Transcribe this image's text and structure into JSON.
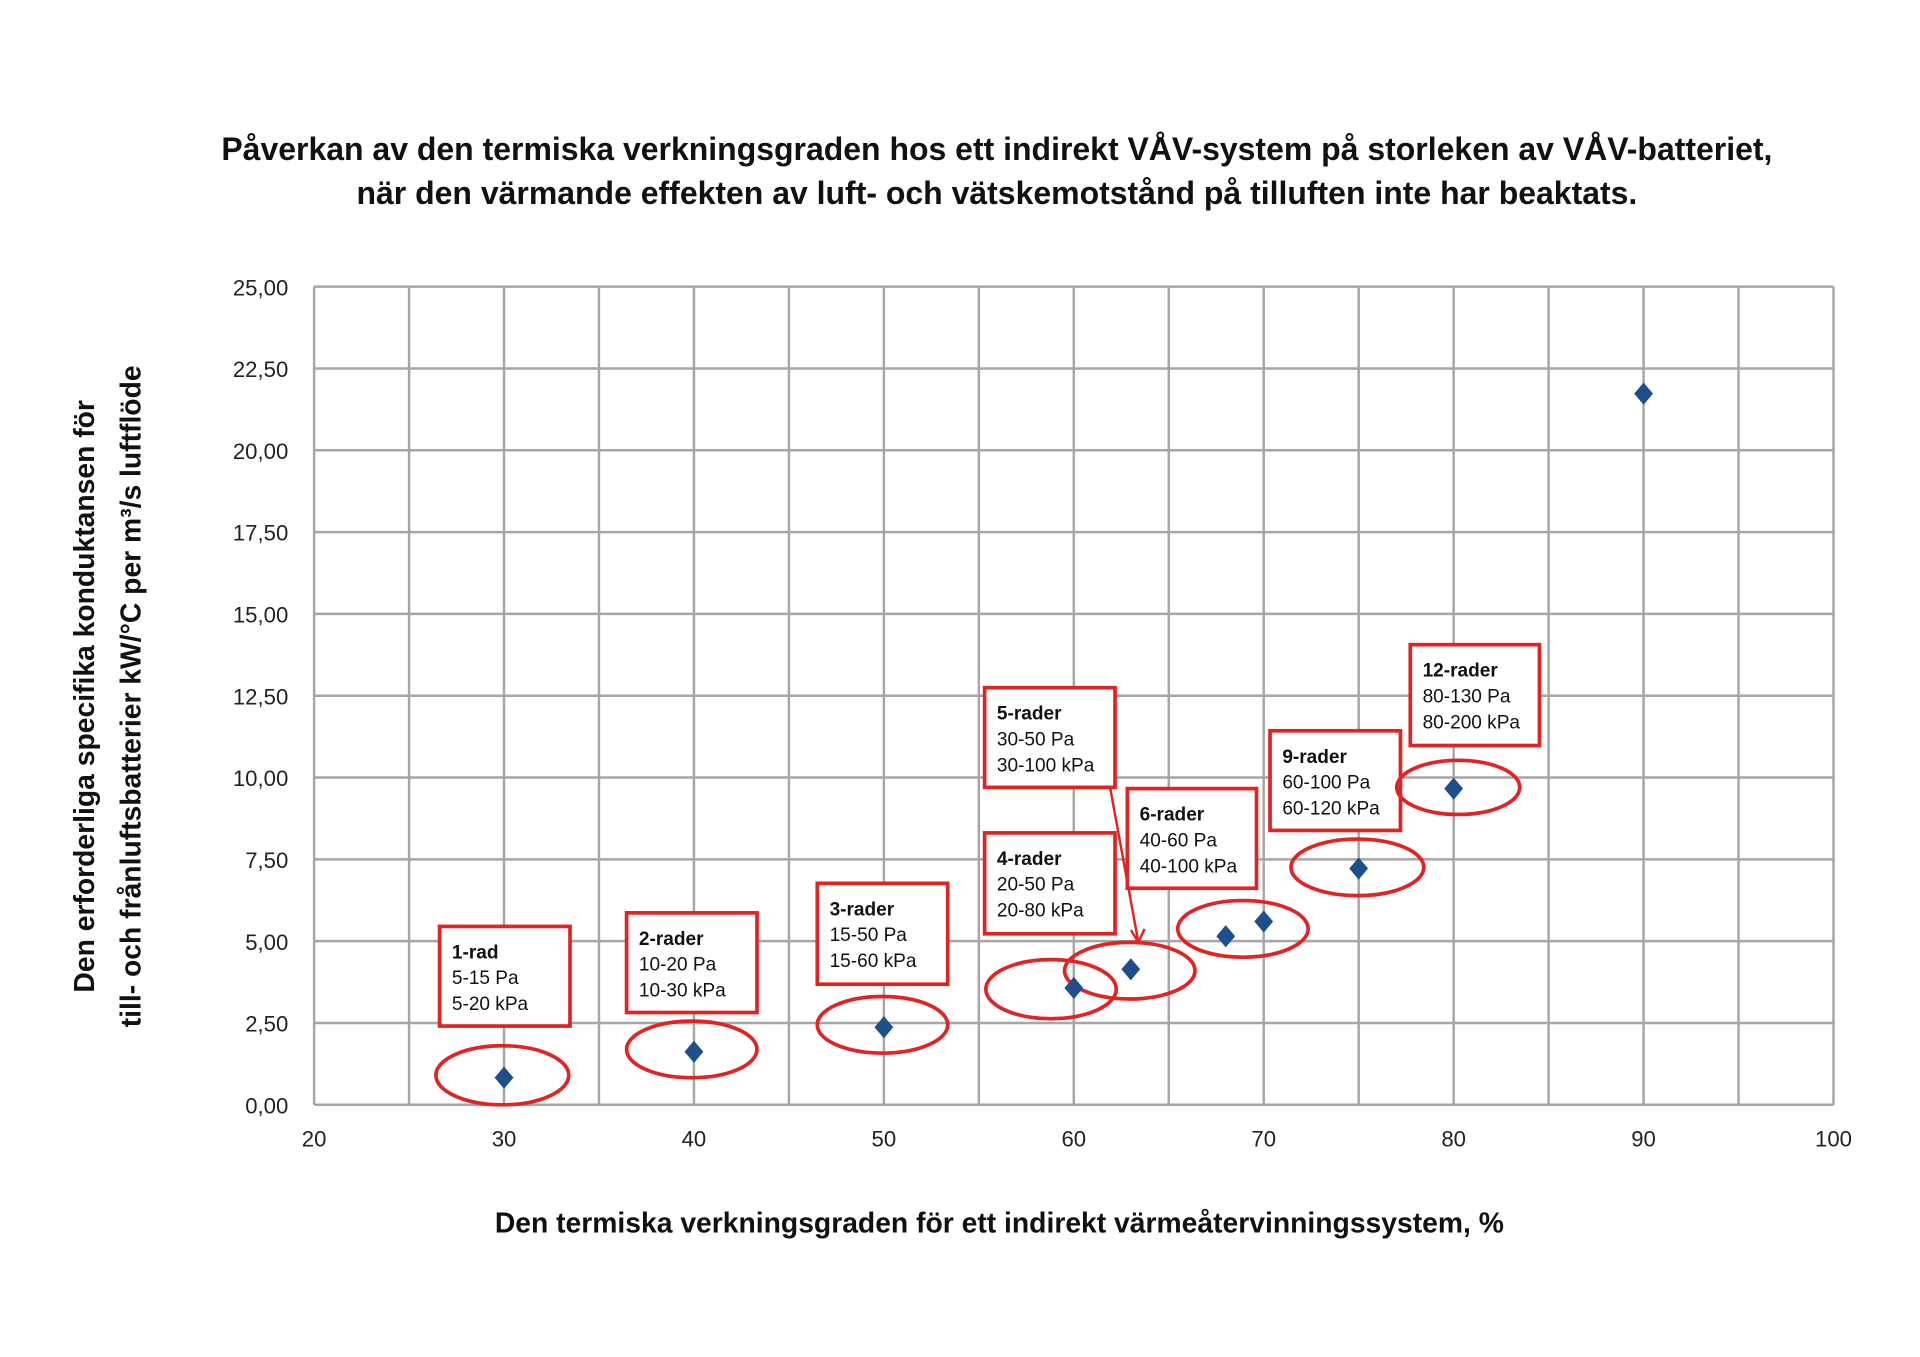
{
  "chart_data": {
    "type": "scatter",
    "title": "Påverkan av den termiska verkningsgraden hos ett indirekt VÅV-system på storleken av VÅV-batteriet,",
    "subtitle": "när den värmande effekten av luft- och vätskemotstånd på tilluften inte har beaktats.",
    "xlabel": "Den termiska verkningsgraden för ett indirekt värmeåtervinningssystem, %",
    "ylabel_line1": "Den erforderliga specifika konduktansen för",
    "ylabel_line2": "till- och frånluftsbatterier kW/°C per m³/s luftflöde",
    "xlim": [
      20,
      100
    ],
    "ylim": [
      0,
      25
    ],
    "grid": true,
    "x_ticks": [
      "20",
      "30",
      "40",
      "50",
      "60",
      "70",
      "80",
      "90",
      "100"
    ],
    "y_ticks": [
      "0,00",
      "2,50",
      "5,00",
      "7,50",
      "10,00",
      "12,50",
      "15,00",
      "17,50",
      "20,00",
      "22,50",
      "25,00"
    ],
    "marker": "diamond",
    "marker_color": "#1f4e8c",
    "annotation_color": "#e02424",
    "points": [
      {
        "x": 30,
        "y": 0.83
      },
      {
        "x": 40,
        "y": 1.62
      },
      {
        "x": 50,
        "y": 2.37
      },
      {
        "x": 60,
        "y": 3.57
      },
      {
        "x": 63,
        "y": 4.14
      },
      {
        "x": 68,
        "y": 5.15
      },
      {
        "x": 70,
        "y": 5.6
      },
      {
        "x": 75,
        "y": 7.22
      },
      {
        "x": 80,
        "y": 9.66
      },
      {
        "x": 90,
        "y": 21.73
      }
    ],
    "annotations": [
      {
        "title": "1-rad",
        "line1": "5-15 Pa",
        "line2": "5-20 kPa"
      },
      {
        "title": "2-rader",
        "line1": "10-20 Pa",
        "line2": "10-30 kPa"
      },
      {
        "title": "3-rader",
        "line1": "15-50 Pa",
        "line2": "15-60 kPa"
      },
      {
        "title": "4-rader",
        "line1": "20-50 Pa",
        "line2": "20-80 kPa"
      },
      {
        "title": "5-rader",
        "line1": "30-50 Pa",
        "line2": "30-100 kPa"
      },
      {
        "title": "6-rader",
        "line1": "40-60 Pa",
        "line2": "40-100 kPa"
      },
      {
        "title": "9-rader",
        "line1": "60-100 Pa",
        "line2": "60-120 kPa"
      },
      {
        "title": "12-rader",
        "line1": "80-130 Pa",
        "line2": "80-200 kPa"
      }
    ]
  }
}
